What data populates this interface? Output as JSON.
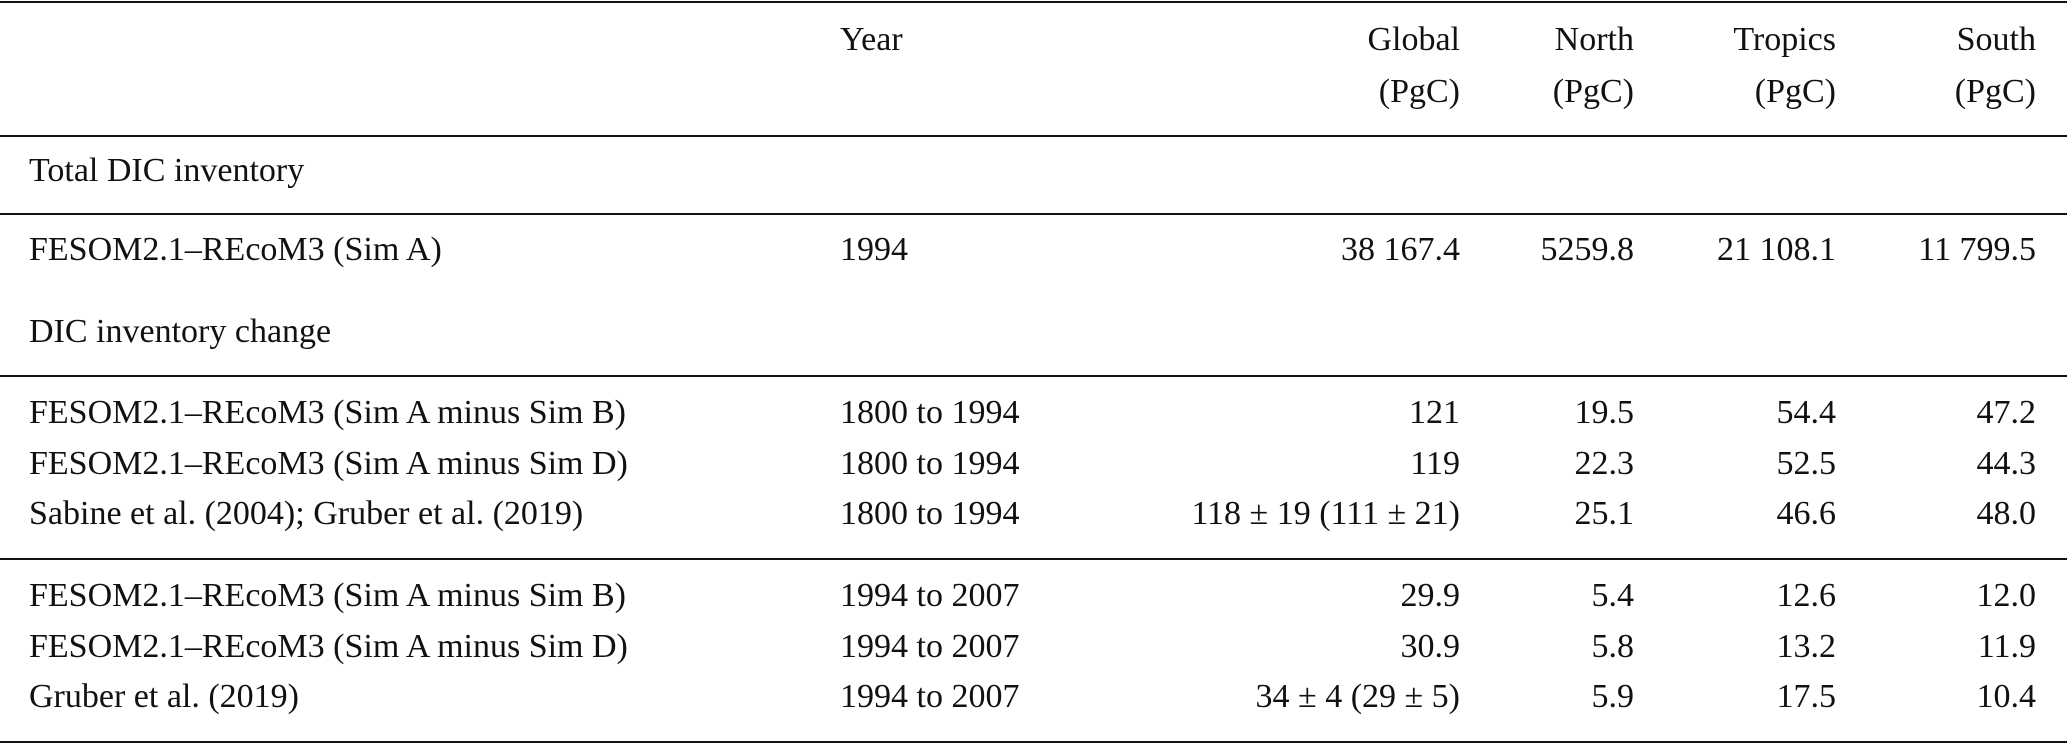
{
  "header": {
    "year": "Year",
    "global": [
      "Global",
      "(PgC)"
    ],
    "north": [
      "North",
      "(PgC)"
    ],
    "tropics": [
      "Tropics",
      "(PgC)"
    ],
    "south": [
      "South",
      "(PgC)"
    ]
  },
  "sections": [
    {
      "title": "Total DIC inventory",
      "groups": [
        [
          {
            "label": "FESOM2.1–REcoM3 (Sim A)",
            "year": "1994",
            "global": "38 167.4",
            "north": "5259.8",
            "tropics": "21 108.1",
            "south": "11 799.5"
          }
        ]
      ]
    },
    {
      "title": "DIC inventory change",
      "groups": [
        [
          {
            "label": "FESOM2.1–REcoM3 (Sim A minus Sim B)",
            "year": "1800 to 1994",
            "global": "121",
            "north": "19.5",
            "tropics": "54.4",
            "south": "47.2"
          },
          {
            "label": "FESOM2.1–REcoM3 (Sim A minus Sim D)",
            "year": "1800 to 1994",
            "global": "119",
            "north": "22.3",
            "tropics": "52.5",
            "south": "44.3"
          },
          {
            "label": "Sabine et al. (2004); Gruber et al. (2019)",
            "year": "1800 to 1994",
            "global": "118 ± 19 (111 ± 21)",
            "north": "25.1",
            "tropics": "46.6",
            "south": "48.0"
          }
        ],
        [
          {
            "label": "FESOM2.1–REcoM3 (Sim A minus Sim B)",
            "year": "1994 to 2007",
            "global": "29.9",
            "north": "5.4",
            "tropics": "12.6",
            "south": "12.0"
          },
          {
            "label": "FESOM2.1–REcoM3 (Sim A minus Sim D)",
            "year": "1994 to 2007",
            "global": "30.9",
            "north": "5.8",
            "tropics": "13.2",
            "south": "11.9"
          },
          {
            "label": "Gruber et al. (2019)",
            "year": "1994 to 2007",
            "global": "34 ± 4 (29 ± 5)",
            "north": "5.9",
            "tropics": "17.5",
            "south": "10.4"
          }
        ]
      ]
    }
  ]
}
